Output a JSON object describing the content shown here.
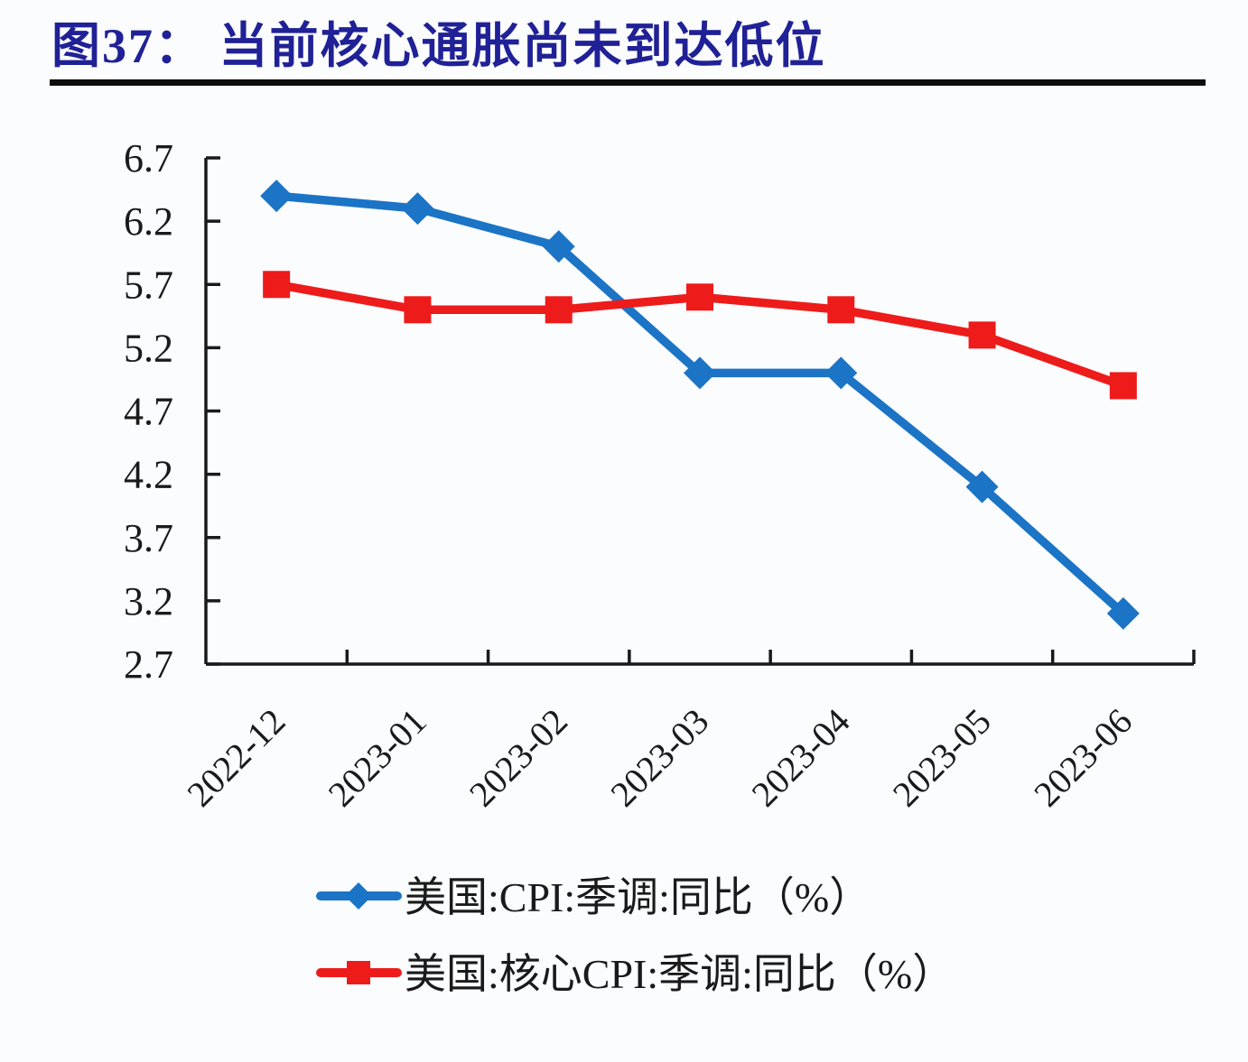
{
  "page": {
    "background": "#FBFCFE"
  },
  "header": {
    "title": "图37： 当前核心通胀尚未到达低位",
    "title_color": "#202196"
  },
  "chart_data": {
    "type": "line",
    "title": "图37： 当前核心通胀尚未到达低位",
    "categories": [
      "2022-12",
      "2023-01",
      "2023-02",
      "2023-03",
      "2023-04",
      "2023-05",
      "2023-06"
    ],
    "series": [
      {
        "name": "美国:CPI:季调:同比（%）",
        "marker": "diamond",
        "color": "#1B74C5",
        "values": [
          6.4,
          6.3,
          6.0,
          5.0,
          5.0,
          4.1,
          3.1
        ]
      },
      {
        "name": "美国:核心CPI:季调:同比（%）",
        "marker": "square",
        "color": "#EE1B1B",
        "values": [
          5.7,
          5.5,
          5.5,
          5.6,
          5.5,
          5.3,
          4.9
        ]
      }
    ],
    "xlabel": "",
    "ylabel": "",
    "ylim": [
      2.7,
      6.7
    ],
    "y_tick_step": 0.5,
    "y_ticks": [
      "6.7",
      "6.2",
      "5.7",
      "5.2",
      "4.7",
      "4.2",
      "3.7",
      "3.2",
      "2.7"
    ],
    "grid": false,
    "legend_position": "bottom",
    "axis_color": "#1a1a1a",
    "text_color": "#1a1a1a"
  }
}
